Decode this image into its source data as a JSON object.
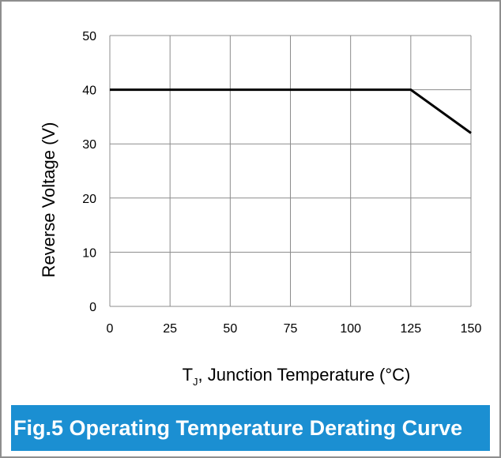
{
  "chart_data": {
    "type": "line",
    "x": [
      0,
      125,
      150
    ],
    "series": [
      {
        "values": [
          40,
          40,
          32
        ]
      }
    ],
    "xlim": [
      0,
      150
    ],
    "ylim": [
      0,
      50
    ],
    "xticks": [
      "0",
      "25",
      "50",
      "75",
      "100",
      "125",
      "150"
    ],
    "yticks": [
      "0",
      "10",
      "20",
      "30",
      "40",
      "50"
    ],
    "xlabel_main": "T",
    "xlabel_sub": "J",
    "xlabel_rest": ", Junction Temperature  (°C)",
    "ylabel": "Reverse Voltage (V)",
    "grid": true,
    "line_color": "#000000"
  },
  "caption": {
    "text": "Fig.5 Operating Temperature Derating Curve",
    "background": "#1b8fd2"
  }
}
